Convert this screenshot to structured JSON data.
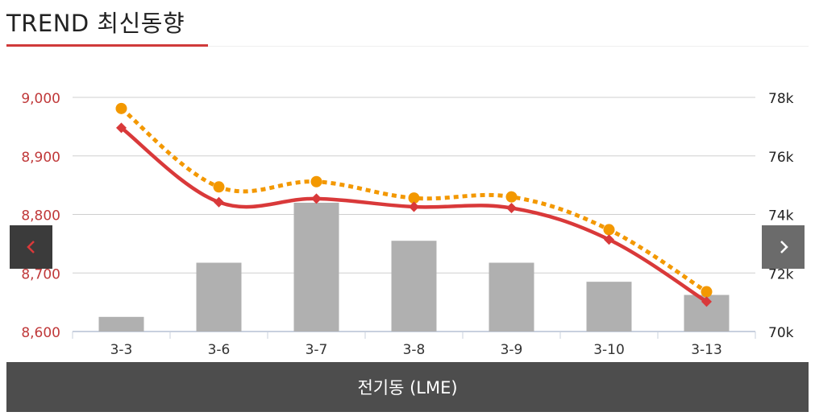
{
  "header": {
    "title": "TREND 최신동향"
  },
  "footer": {
    "label": "전기동 (LME)"
  },
  "nav": {
    "prev_icon": "chevron-left-icon",
    "next_icon": "chevron-right-icon"
  },
  "colors": {
    "accent": "#d03a3a",
    "bar": "#b0b0b0",
    "line_red": "#d9393a",
    "line_orange": "#f39800",
    "footer_bg": "#4d4d4d"
  },
  "chart_data": {
    "type": "bar",
    "categories": [
      "3-3",
      "3-6",
      "3-7",
      "3-8",
      "3-9",
      "3-10",
      "3-13"
    ],
    "y_left": {
      "ticks": [
        "8,600",
        "8,700",
        "8,800",
        "8,900",
        "9,000"
      ],
      "range": [
        8600,
        9000
      ]
    },
    "y_right": {
      "ticks": [
        "70k",
        "72k",
        "74k",
        "76k",
        "78k"
      ],
      "range": [
        70000,
        78000
      ]
    },
    "grid": true,
    "series": [
      {
        "type": "bar",
        "axis": "right",
        "values": [
          70500,
          72350,
          74400,
          73100,
          72350,
          71700,
          71250
        ]
      },
      {
        "type": "line",
        "style": "solid",
        "marker": "diamond",
        "axis": "left",
        "values": [
          8948,
          8821,
          8827,
          8813,
          8811,
          8757,
          8651
        ]
      },
      {
        "type": "line",
        "style": "dotted",
        "marker": "circle",
        "axis": "left",
        "values": [
          8981,
          8847,
          8856,
          8828,
          8830,
          8774,
          8668
        ]
      }
    ]
  }
}
